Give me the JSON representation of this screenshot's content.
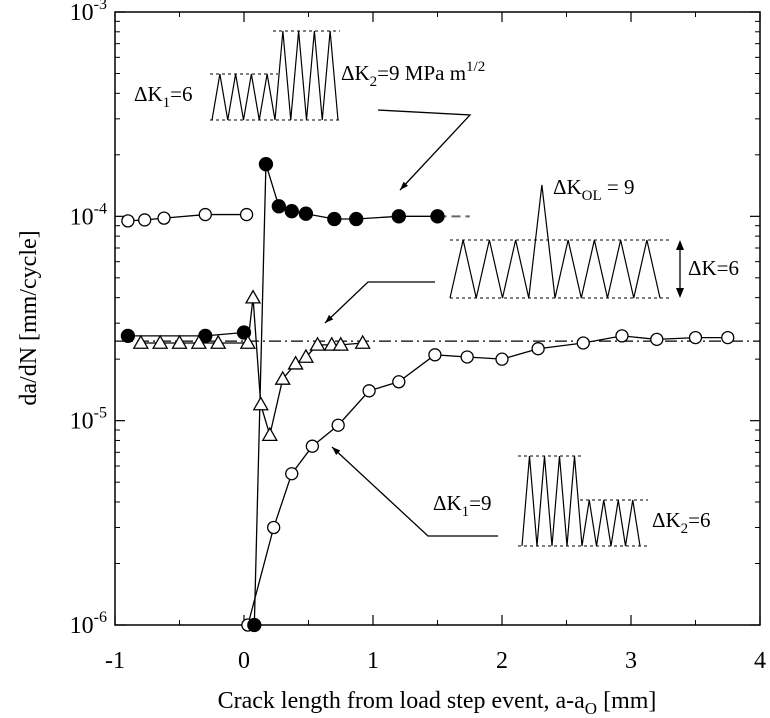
{
  "chart_data": {
    "type": "scatter",
    "title": "",
    "xlabel": "Crack length from load step event, a-a",
    "xlabel_sub": "O",
    "xlabel_unit": " [mm]",
    "ylabel": "da/dN [mm/cycle]",
    "xlim": [
      -1,
      4
    ],
    "ylim": [
      1e-06,
      0.001
    ],
    "yscale": "log",
    "x_ticks": [
      "-1",
      "0",
      "1",
      "2",
      "3",
      "4"
    ],
    "y_ticks": [
      {
        "base": "10",
        "exp": "-3"
      },
      {
        "base": "10",
        "exp": "-4"
      },
      {
        "base": "10",
        "exp": "-5"
      },
      {
        "base": "10",
        "exp": "-6"
      }
    ],
    "grid": false,
    "reference_lines": [
      {
        "style": "dash-dot",
        "y": 2.45e-05,
        "x": [
          -1,
          4
        ]
      },
      {
        "style": "dashed",
        "y": 0.0001,
        "x": [
          1.5,
          1.75
        ]
      }
    ],
    "series": [
      {
        "marker": "open-circle",
        "x": [
          0.03,
          0.23,
          0.37,
          0.53,
          0.73,
          0.97,
          1.2,
          1.48,
          1.73,
          2.0,
          2.28,
          2.63,
          2.93,
          3.2,
          3.5,
          3.75
        ],
        "y": [
          1e-06,
          3e-06,
          5.5e-06,
          7.5e-06,
          9.5e-06,
          1.4e-05,
          1.55e-05,
          2.1e-05,
          2.05e-05,
          2e-05,
          2.25e-05,
          2.4e-05,
          2.6e-05,
          2.5e-05,
          2.55e-05,
          2.55e-05
        ]
      },
      {
        "marker": "open-circle",
        "x": [
          -0.9,
          -0.77,
          -0.62,
          -0.3,
          0.02
        ],
        "y": [
          9.5e-05,
          9.6e-05,
          9.8e-05,
          0.000102,
          0.000102
        ]
      },
      {
        "marker": "filled-circle",
        "x": [
          0.08,
          0.17,
          0.27,
          0.37,
          0.48,
          0.7,
          0.87,
          1.2,
          1.5
        ],
        "y": [
          1e-06,
          0.00018,
          0.000112,
          0.000106,
          0.000103,
          9.7e-05,
          9.7e-05,
          0.0001,
          0.0001
        ]
      },
      {
        "marker": "filled-circle",
        "x": [
          -0.9,
          -0.3,
          0.0
        ],
        "y": [
          2.6e-05,
          2.6e-05,
          2.7e-05
        ]
      },
      {
        "marker": "open-triangle",
        "x": [
          -0.8,
          -0.65,
          -0.5,
          -0.35,
          -0.2,
          0.03,
          0.07,
          0.13,
          0.2,
          0.3,
          0.4,
          0.48,
          0.57,
          0.68,
          0.75,
          0.92
        ],
        "y": [
          2.4e-05,
          2.4e-05,
          2.4e-05,
          2.4e-05,
          2.4e-05,
          2.4e-05,
          4e-05,
          1.2e-05,
          8.5e-06,
          1.6e-05,
          1.9e-05,
          2.05e-05,
          2.35e-05,
          2.35e-05,
          2.35e-05,
          2.4e-05
        ]
      }
    ],
    "annotations": [
      {
        "parts": [
          {
            "t": "ΔK"
          },
          {
            "t": "1",
            "sub": true
          },
          {
            "t": "=6"
          }
        ]
      },
      {
        "parts": [
          {
            "t": "ΔK"
          },
          {
            "t": "2",
            "sub": true
          },
          {
            "t": "=9 MPa m"
          },
          {
            "t": "1/2",
            "sup": true
          }
        ]
      },
      {
        "parts": [
          {
            "t": "ΔK"
          },
          {
            "t": "OL",
            "sub": true
          },
          {
            "t": " = 9"
          }
        ]
      },
      {
        "parts": [
          {
            "t": "ΔK=6"
          }
        ]
      },
      {
        "parts": [
          {
            "t": "ΔK"
          },
          {
            "t": "1",
            "sub": true
          },
          {
            "t": "=9"
          }
        ]
      },
      {
        "parts": [
          {
            "t": "ΔK"
          },
          {
            "t": "2",
            "sub": true
          },
          {
            "t": "=6"
          }
        ]
      }
    ]
  }
}
